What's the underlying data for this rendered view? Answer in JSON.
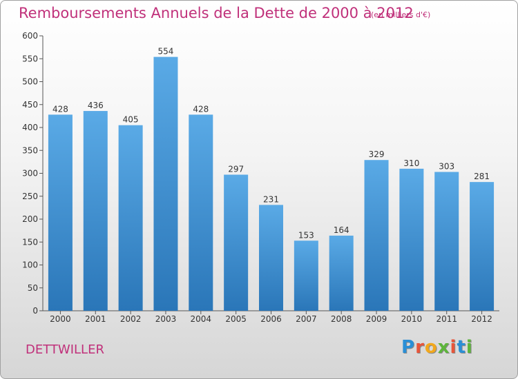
{
  "header": {
    "title": "Remboursements Annuels de la Dette de 2000 à 2012",
    "subtitle": "(en milliers d'€)"
  },
  "footer": {
    "commune": "DETTWILLER",
    "logo_text": "Proxiti"
  },
  "colors": {
    "title": "#c0307a",
    "bar_top": "#5aaae6",
    "bar_bottom": "#2a76b8",
    "logo_letters": [
      "#2a8fd6",
      "#e8553a",
      "#f2a81d",
      "#5db53b",
      "#e8553a",
      "#2a8fd6",
      "#5db53b"
    ]
  },
  "chart_data": {
    "type": "bar",
    "categories": [
      "2000",
      "2001",
      "2002",
      "2003",
      "2004",
      "2005",
      "2006",
      "2007",
      "2008",
      "2009",
      "2010",
      "2011",
      "2012"
    ],
    "values": [
      428,
      436,
      405,
      554,
      428,
      297,
      231,
      153,
      164,
      329,
      310,
      303,
      281
    ],
    "title": "Remboursements Annuels de la Dette de 2000 à 2012",
    "xlabel": "",
    "ylabel": "",
    "ylim": [
      0,
      600
    ],
    "yticks": [
      0,
      50,
      100,
      150,
      200,
      250,
      300,
      350,
      400,
      450,
      500,
      550,
      600
    ],
    "grid": false,
    "data_labels": true
  }
}
